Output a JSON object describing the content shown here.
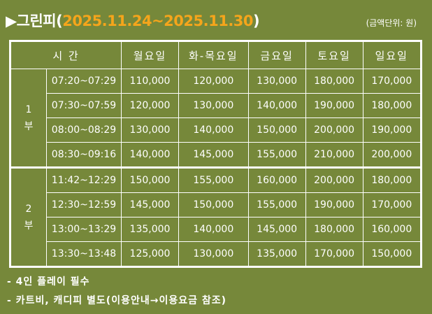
{
  "header": {
    "arrow": "▶",
    "name": "그린피",
    "range": "2025.11.24~2025.11.30",
    "unit": "(금액단위:  원)"
  },
  "table": {
    "columns": [
      "시 간",
      "월요일",
      "화-목요일",
      "금요일",
      "토요일",
      "일요일"
    ],
    "sections": [
      {
        "label": "1",
        "label2": "부",
        "rows": [
          [
            "07:20~07:29",
            "110,000",
            "120,000",
            "130,000",
            "180,000",
            "170,000"
          ],
          [
            "07:30~07:59",
            "120,000",
            "130,000",
            "140,000",
            "190,000",
            "180,000"
          ],
          [
            "08:00~08:29",
            "130,000",
            "140,000",
            "150,000",
            "200,000",
            "190,000"
          ],
          [
            "08:30~09:16",
            "140,000",
            "145,000",
            "155,000",
            "210,000",
            "200,000"
          ]
        ]
      },
      {
        "label": "2",
        "label2": "부",
        "rows": [
          [
            "11:42~12:29",
            "150,000",
            "155,000",
            "160,000",
            "200,000",
            "180,000"
          ],
          [
            "12:30~12:59",
            "145,000",
            "150,000",
            "155,000",
            "190,000",
            "170,000"
          ],
          [
            "13:00~13:29",
            "135,000",
            "140,000",
            "145,000",
            "180,000",
            "160,000"
          ],
          [
            "13:30~13:48",
            "125,000",
            "130,000",
            "135,000",
            "170,000",
            "150,000"
          ]
        ]
      }
    ]
  },
  "notes": [
    "-  4인 플레이 필수",
    "-  카트비, 캐디피 별도(이용안내→이용요금 참조)"
  ],
  "colors": {
    "background": "#76883a",
    "accent": "#f5a51b"
  }
}
